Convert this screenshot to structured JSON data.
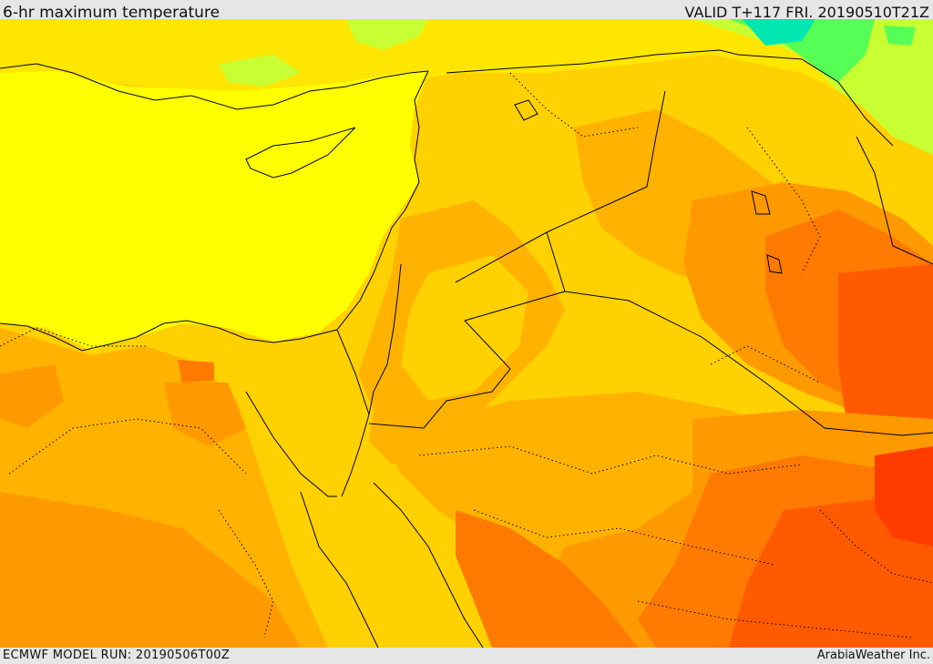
{
  "header": {
    "title": "6-hr maximum temperature",
    "valid": "VALID T+117 FRI. 20190510T21Z"
  },
  "footer": {
    "model_run": "ECMWF MODEL RUN: 20190506T00Z",
    "credit": "ArabiaWeather Inc."
  },
  "colors": {
    "sea": "#ffff00",
    "light_yellow": "#ffe600",
    "amber": "#ffd100",
    "orange_light": "#ffb300",
    "orange": "#ff9900",
    "orange_dark": "#ff7a00",
    "red_orange": "#ff5a00",
    "red": "#ff3c00",
    "green_light": "#c8ff33",
    "green": "#55ff55",
    "cyan": "#00e6b0",
    "border": "#000000"
  }
}
